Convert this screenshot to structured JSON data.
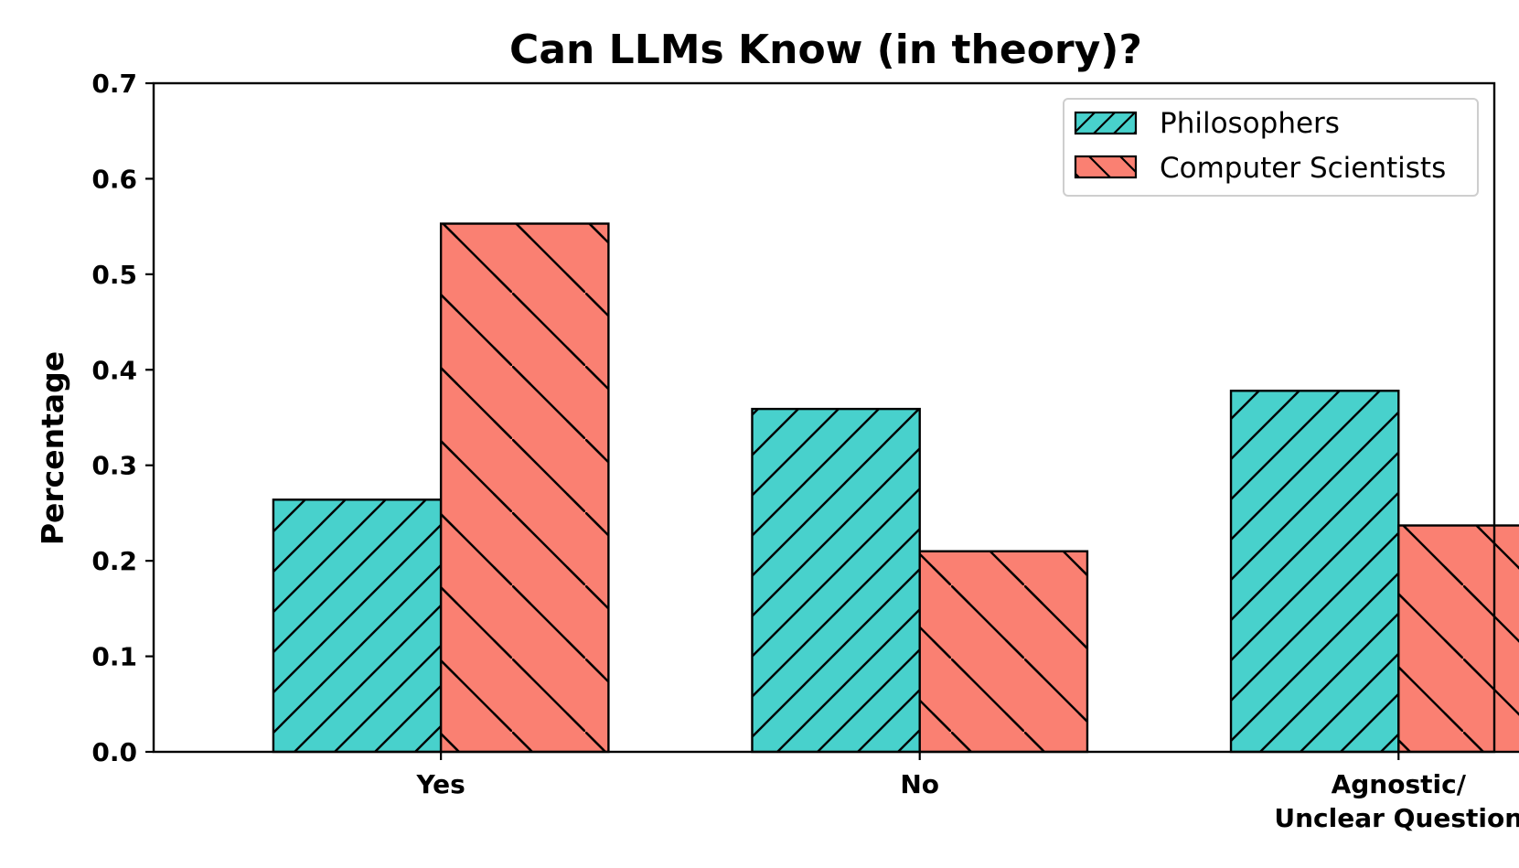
{
  "chart_data": {
    "type": "bar",
    "title": "Can LLMs Know (in theory)?",
    "xlabel": "",
    "ylabel": "Percentage",
    "categories": [
      "Yes",
      "No",
      "Agnostic/\nUnclear Question"
    ],
    "series": [
      {
        "name": "Philosophers",
        "values": [
          0.264,
          0.359,
          0.378
        ],
        "color": "#48D1CC",
        "hatch": "/"
      },
      {
        "name": "Computer Scientists",
        "values": [
          0.553,
          0.21,
          0.237
        ],
        "color": "#FA8072",
        "hatch": "\\"
      }
    ],
    "ylim": [
      0,
      0.7
    ],
    "yticks": [
      "0.0",
      "0.1",
      "0.2",
      "0.3",
      "0.4",
      "0.5",
      "0.6",
      "0.7"
    ],
    "legend_position": "top-right",
    "grid": false
  }
}
